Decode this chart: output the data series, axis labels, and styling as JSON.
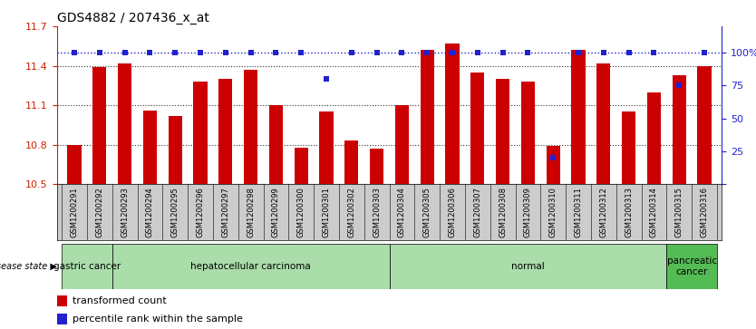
{
  "title": "GDS4882 / 207436_x_at",
  "samples": [
    "GSM1200291",
    "GSM1200292",
    "GSM1200293",
    "GSM1200294",
    "GSM1200295",
    "GSM1200296",
    "GSM1200297",
    "GSM1200298",
    "GSM1200299",
    "GSM1200300",
    "GSM1200301",
    "GSM1200302",
    "GSM1200303",
    "GSM1200304",
    "GSM1200305",
    "GSM1200306",
    "GSM1200307",
    "GSM1200308",
    "GSM1200309",
    "GSM1200310",
    "GSM1200311",
    "GSM1200312",
    "GSM1200313",
    "GSM1200314",
    "GSM1200315",
    "GSM1200316"
  ],
  "bar_values": [
    10.8,
    11.39,
    11.42,
    11.06,
    11.02,
    11.28,
    11.3,
    11.37,
    11.1,
    10.78,
    11.05,
    10.83,
    10.77,
    11.1,
    11.52,
    11.57,
    11.35,
    11.3,
    11.28,
    10.79,
    11.52,
    11.42,
    11.05,
    11.2,
    11.33,
    11.4
  ],
  "percentile_values": [
    100,
    100,
    100,
    100,
    100,
    100,
    100,
    100,
    100,
    100,
    80,
    100,
    100,
    100,
    100,
    100,
    100,
    100,
    100,
    20,
    100,
    100,
    100,
    100,
    75,
    100
  ],
  "ylim_left": [
    10.5,
    11.7
  ],
  "ylim_right": [
    0,
    120
  ],
  "yticks_left": [
    10.5,
    10.8,
    11.1,
    11.4,
    11.7
  ],
  "yticks_right": [
    0,
    25,
    50,
    75,
    100
  ],
  "bar_color": "#CC0000",
  "dot_color": "#2222CC",
  "groups": [
    {
      "label": "gastric cancer",
      "start": 0,
      "end": 2,
      "color": "#AADDAA"
    },
    {
      "label": "hepatocellular carcinoma",
      "start": 2,
      "end": 13,
      "color": "#AADDAA"
    },
    {
      "label": "normal",
      "start": 13,
      "end": 24,
      "color": "#AADDAA"
    },
    {
      "label": "pancreatic\ncancer",
      "start": 24,
      "end": 26,
      "color": "#55BB55"
    }
  ],
  "disease_state_label": "disease state",
  "legend_bar_label": "transformed count",
  "legend_dot_label": "percentile rank within the sample",
  "tick_label_color": "#CC2200",
  "right_tick_color": "#2222CC",
  "grid_color": "#333333",
  "xlabel_bg": "#CCCCCC",
  "title_fontsize": 10,
  "bar_width": 0.55
}
